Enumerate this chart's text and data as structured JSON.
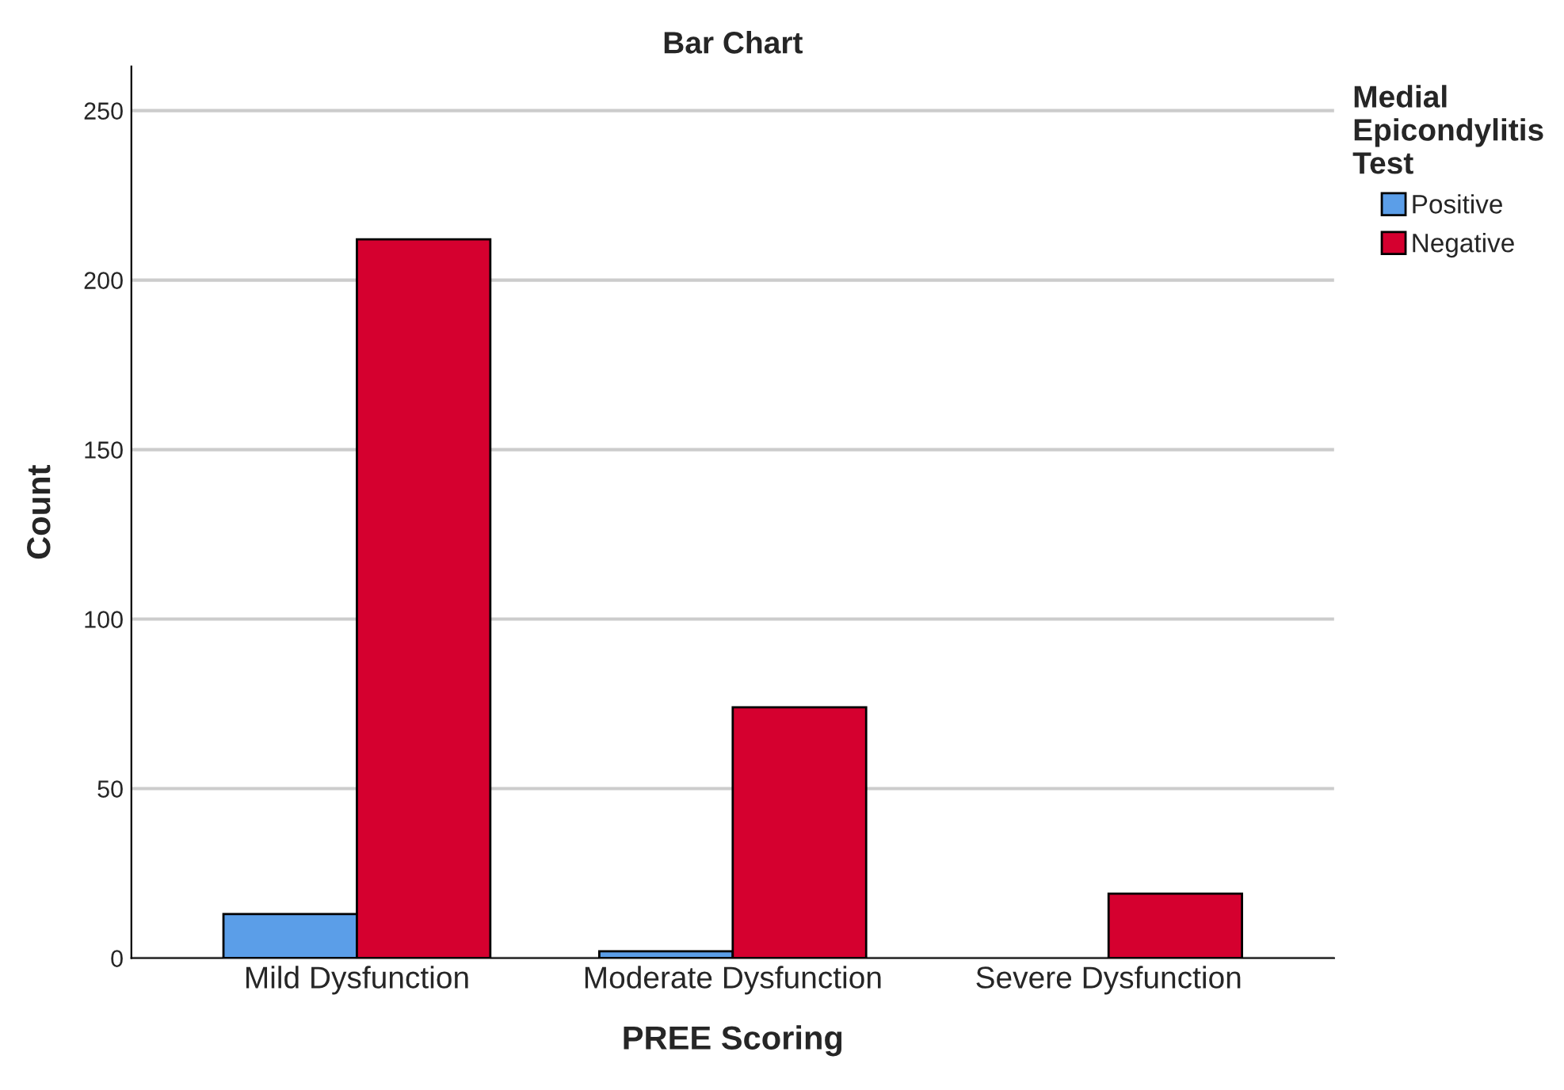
{
  "chart_data": {
    "type": "bar",
    "title": "Bar Chart",
    "xlabel": "PREE Scoring",
    "ylabel": "Count",
    "legend_title": "Medial Epicondylitis Test",
    "categories": [
      "Mild Dysfunction",
      "Moderate Dysfunction",
      "Severe Dysfunction"
    ],
    "series": [
      {
        "name": "Positive",
        "color": "#5b9ee8",
        "values": [
          13,
          2,
          null
        ]
      },
      {
        "name": "Negative",
        "color": "#d5002f",
        "values": [
          212,
          74,
          19
        ]
      }
    ],
    "ylim": [
      0,
      263
    ],
    "yticks": [
      0,
      50,
      100,
      150,
      200,
      250
    ],
    "grid": "y",
    "legend": "top right"
  }
}
